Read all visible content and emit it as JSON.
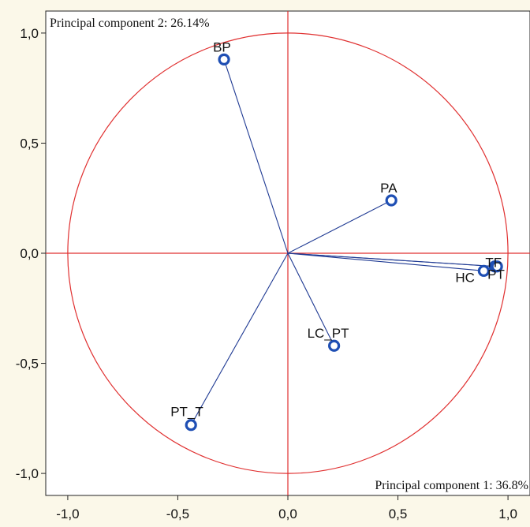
{
  "colors": {
    "background": "#fbf8e9",
    "plot_background": "#ffffff",
    "circle": "#e03030",
    "axis_lines": "#e03030",
    "vectors": "#1f3a93",
    "markers": "#1f4fb4"
  },
  "chart_data": {
    "type": "scatter",
    "title": "",
    "pc2_label": "Principal component 2: 26.14%",
    "pc1_label": "Principal component 1: 36.8%",
    "xlim": [
      -1.1,
      1.1
    ],
    "ylim": [
      -1.1,
      1.1
    ],
    "x_ticks": [
      {
        "value": -1.0,
        "label": "-1,0"
      },
      {
        "value": -0.5,
        "label": "-0,5"
      },
      {
        "value": 0.0,
        "label": "0,0"
      },
      {
        "value": 0.5,
        "label": "0,5"
      },
      {
        "value": 1.0,
        "label": "1,0"
      }
    ],
    "y_ticks": [
      {
        "value": 1.0,
        "label": "1,0"
      },
      {
        "value": 0.5,
        "label": "0,5"
      },
      {
        "value": 0.0,
        "label": "0,0"
      },
      {
        "value": -0.5,
        "label": "-0,5"
      },
      {
        "value": -1.0,
        "label": "-1,0"
      }
    ],
    "unit_circle": true,
    "points": [
      {
        "label": "BP",
        "x": -0.29,
        "y": 0.88
      },
      {
        "label": "PA",
        "x": 0.47,
        "y": 0.24
      },
      {
        "label": "HC",
        "x": 0.89,
        "y": -0.08
      },
      {
        "label": "TF",
        "x": 0.94,
        "y": -0.06
      },
      {
        "label": "PT",
        "x": 0.95,
        "y": -0.06
      },
      {
        "label": "LC_PT",
        "x": 0.21,
        "y": -0.42
      },
      {
        "label": "PT_T",
        "x": -0.44,
        "y": -0.78
      }
    ]
  }
}
